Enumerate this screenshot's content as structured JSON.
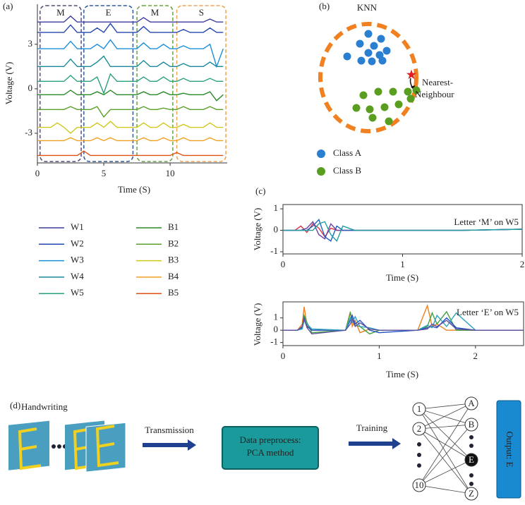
{
  "panel_labels": [
    "(a)",
    "(b)",
    "(c)",
    "(d)"
  ],
  "chart_data": [
    {
      "type": "line",
      "xlabel": "Time (S)",
      "ylabel": "Voltage (V)",
      "x": [
        0,
        0.5,
        1,
        1.5,
        2,
        2.5,
        3,
        3.5,
        4,
        4.5,
        5,
        5.5,
        6,
        6.5,
        7,
        7.5,
        8,
        8.5,
        9,
        9.5,
        10,
        10.5,
        11,
        11.5,
        12,
        12.5,
        13,
        13.5,
        14
      ],
      "xlim": [
        0,
        14.3
      ],
      "ylim": [
        -5,
        5.7
      ],
      "xticks": [
        0,
        5,
        10
      ],
      "yticks": [
        -3,
        0,
        3
      ],
      "regions": [
        {
          "label": "M",
          "x": [
            0.2,
            3.3
          ],
          "color": "#5a4a7a"
        },
        {
          "label": "E",
          "x": [
            3.5,
            7.2
          ],
          "color": "#2a5aa0"
        },
        {
          "label": "M",
          "x": [
            7.5,
            10.2
          ],
          "color": "#6aa040"
        },
        {
          "label": "S",
          "x": [
            10.5,
            14.2
          ],
          "color": "#f0a050"
        }
      ],
      "series": [
        {
          "name": "W1",
          "color": "#3b3b9e",
          "values": [
            4.5,
            4.5,
            4.5,
            4.5,
            4.5,
            4.9,
            4.5,
            4.5,
            4.5,
            4.5,
            4.5,
            4.5,
            4.5,
            4.5,
            4.5,
            4.5,
            4.8,
            4.5,
            4.5,
            4.5,
            4.5,
            4.5,
            4.5,
            4.5,
            4.5,
            4.5,
            4.7,
            4.5,
            4.5
          ]
        },
        {
          "name": "W2",
          "color": "#2346b0",
          "values": [
            3.8,
            3.8,
            3.8,
            3.8,
            3.8,
            4.3,
            3.8,
            3.8,
            3.8,
            4.1,
            3.8,
            4.4,
            3.8,
            3.8,
            3.8,
            3.8,
            4.2,
            3.8,
            3.8,
            3.8,
            3.8,
            3.8,
            4.0,
            3.8,
            3.8,
            3.8,
            4.1,
            3.8,
            3.8
          ]
        },
        {
          "name": "W3",
          "color": "#1a8fd8",
          "values": [
            2.7,
            2.7,
            2.7,
            2.7,
            2.7,
            3.2,
            2.7,
            2.7,
            2.7,
            3.0,
            2.7,
            3.3,
            2.7,
            2.7,
            2.7,
            2.7,
            3.1,
            2.7,
            2.7,
            3.0,
            2.7,
            2.7,
            2.9,
            2.7,
            2.7,
            2.7,
            3.0,
            1.5,
            2.7
          ]
        },
        {
          "name": "W4",
          "color": "#1a8a9a",
          "values": [
            1.5,
            1.5,
            1.5,
            1.5,
            1.5,
            2.0,
            1.5,
            1.5,
            1.5,
            1.8,
            2.2,
            1.5,
            1.5,
            1.5,
            1.5,
            1.5,
            1.9,
            1.5,
            1.5,
            1.8,
            1.5,
            1.5,
            1.7,
            1.5,
            1.5,
            1.5,
            1.8,
            1.5,
            1.5
          ]
        },
        {
          "name": "W5",
          "color": "#2aa080",
          "values": [
            0.5,
            0.5,
            0.5,
            0.5,
            0.5,
            0.9,
            0.5,
            0.5,
            0.5,
            0.8,
            -0.3,
            1.0,
            0.5,
            0.5,
            0.5,
            0.5,
            0.8,
            0.5,
            0.5,
            0.8,
            0.5,
            0.5,
            0.7,
            0.5,
            0.5,
            0.5,
            0.7,
            0.5,
            0.5
          ]
        },
        {
          "name": "B1",
          "color": "#2a8a2a",
          "values": [
            -0.4,
            -0.4,
            -0.4,
            -0.4,
            -0.4,
            -0.1,
            -0.4,
            -0.4,
            -0.4,
            -0.2,
            -0.4,
            -0.1,
            -0.4,
            -0.4,
            -0.4,
            -0.4,
            -0.2,
            -0.4,
            -0.4,
            -0.2,
            -0.4,
            -0.4,
            -0.3,
            -0.4,
            -0.4,
            -0.4,
            -0.2,
            -0.8,
            -0.4
          ]
        },
        {
          "name": "B2",
          "color": "#5aa02a",
          "values": [
            -1.4,
            -1.4,
            -1.4,
            -1.4,
            -1.4,
            -1.2,
            -1.4,
            -1.4,
            -1.4,
            -1.2,
            -1.9,
            -1.4,
            -1.4,
            -1.4,
            -1.4,
            -1.4,
            -1.2,
            -1.4,
            -1.4,
            -1.3,
            -1.4,
            -1.4,
            -1.2,
            -1.4,
            -1.4,
            -1.4,
            -1.2,
            -1.4,
            -1.4
          ]
        },
        {
          "name": "B3",
          "color": "#d0c81a",
          "values": [
            -2.6,
            -2.6,
            -2.6,
            -2.3,
            -2.6,
            -3.0,
            -2.6,
            -2.6,
            -2.6,
            -2.3,
            -2.6,
            -2.2,
            -2.6,
            -2.6,
            -2.6,
            -2.6,
            -2.3,
            -2.6,
            -2.6,
            -2.3,
            -2.6,
            -2.6,
            -2.4,
            -2.6,
            -2.6,
            -2.6,
            -2.3,
            -2.6,
            -2.6
          ]
        },
        {
          "name": "B4",
          "color": "#f0a020",
          "values": [
            -3.5,
            -3.5,
            -3.5,
            -3.5,
            -3.5,
            -3.3,
            -3.5,
            -3.5,
            -3.5,
            -3.3,
            -3.5,
            -3.3,
            -3.5,
            -3.5,
            -3.5,
            -3.5,
            -3.3,
            -3.5,
            -3.5,
            -3.3,
            -3.5,
            -3.5,
            -3.3,
            -3.5,
            -3.5,
            -3.5,
            -3.3,
            -3.5,
            -3.5
          ]
        },
        {
          "name": "B5",
          "color": "#e05010",
          "values": [
            -4.5,
            -4.5,
            -4.5,
            -4.5,
            -4.5,
            -4.5,
            -4.5,
            -4.2,
            -4.5,
            -4.5,
            -4.5,
            -4.5,
            -4.5,
            -4.5,
            -4.5,
            -4.5,
            -4.5,
            -4.5,
            -4.5,
            -4.5,
            -4.5,
            -4.3,
            -4.5,
            -4.5,
            -4.5,
            -4.5,
            -4.5,
            -4.5,
            -4.5
          ]
        }
      ]
    },
    {
      "type": "scatter",
      "title": "KNN",
      "xlim": [
        0,
        150
      ],
      "ylim": [
        0,
        170
      ],
      "annotation": [
        "Nearest-",
        "Neighbour"
      ],
      "highlight": {
        "x": 133,
        "y": 84,
        "color": "#e02020"
      },
      "series": [
        {
          "name": "Class A",
          "color": "#2a7fd0",
          "x": [
            72,
            90,
            60,
            80,
            98,
            72,
            88,
            42,
            62,
            77,
            92
          ],
          "y": [
            142,
            135,
            128,
            125,
            118,
            115,
            112,
            110,
            104,
            103,
            104
          ]
        },
        {
          "name": "Class B",
          "color": "#5a9e20",
          "x": [
            65,
            86,
            107,
            128,
            140,
            55,
            74,
            95,
            115,
            132,
            78,
            101
          ],
          "y": [
            55,
            60,
            60,
            60,
            62,
            37,
            35,
            38,
            42,
            50,
            23,
            18
          ]
        }
      ]
    },
    {
      "type": "line",
      "xlabel": "Time (S)",
      "ylabel": "Voltage (V)",
      "annotation": "Letter ‘M’ on W5",
      "x": [
        0,
        0.1,
        0.15,
        0.2,
        0.25,
        0.3,
        0.35,
        0.4,
        0.45,
        0.5,
        0.6,
        1,
        1.5,
        2
      ],
      "xlim": [
        0,
        2
      ],
      "ylim": [
        -1.1,
        1.2
      ],
      "xticks": [
        0,
        1,
        2
      ],
      "yticks": [
        -1,
        0,
        1
      ],
      "series": [
        {
          "color": "#e03040",
          "values": [
            0,
            0,
            0.2,
            -0.1,
            0.3,
            0.1,
            -0.3,
            0.1,
            0,
            0,
            0,
            0,
            0,
            0.05
          ]
        },
        {
          "color": "#7040a0",
          "values": [
            0,
            0,
            0,
            0.1,
            0.4,
            -0.2,
            -0.4,
            0.3,
            0,
            0,
            0,
            0,
            0,
            0.05
          ]
        },
        {
          "color": "#2060c0",
          "values": [
            0,
            0,
            0,
            0,
            0.2,
            0.5,
            -0.3,
            -0.5,
            0.2,
            0,
            0,
            0,
            0,
            0.05
          ]
        },
        {
          "color": "#20a0a0",
          "values": [
            0,
            0,
            0,
            0,
            0,
            0.3,
            0.4,
            -0.2,
            -0.5,
            0.2,
            0,
            0,
            0,
            0.05
          ]
        }
      ]
    },
    {
      "type": "line",
      "xlabel": "Time (S)",
      "ylabel": "Voltage (V)",
      "annotation": "Letter ‘E’ on W5",
      "x": [
        0,
        0.15,
        0.2,
        0.22,
        0.25,
        0.3,
        0.65,
        0.7,
        0.72,
        0.75,
        0.8,
        0.9,
        1.0,
        1.4,
        1.5,
        1.55,
        1.6,
        1.7,
        1.8,
        2,
        2.5
      ],
      "xlim": [
        0,
        2.5
      ],
      "ylim": [
        -1.25,
        2.3
      ],
      "xticks": [
        0,
        1,
        2
      ],
      "yticks": [
        -1,
        0,
        1
      ],
      "series": [
        {
          "color": "#f08020",
          "values": [
            0,
            0,
            0.5,
            1.9,
            0.4,
            0,
            0,
            1.5,
            0.3,
            0.8,
            -0.2,
            0.1,
            0,
            0,
            2.0,
            0.3,
            0.5,
            0,
            0,
            0,
            0
          ]
        },
        {
          "color": "#40a040",
          "values": [
            0,
            0,
            0.3,
            1.2,
            0.6,
            -0.2,
            0,
            1.4,
            0.9,
            0.4,
            0.3,
            -0.3,
            0,
            0,
            0.3,
            1.4,
            0.5,
            1.5,
            0,
            0,
            0
          ]
        },
        {
          "color": "#2050c0",
          "values": [
            0,
            0,
            0.2,
            1.0,
            0.3,
            0,
            0,
            0.8,
            1.2,
            0.5,
            0.8,
            0,
            -0.2,
            0,
            0.2,
            0.3,
            0.2,
            1.0,
            0.2,
            0,
            0
          ]
        },
        {
          "color": "#30a0c0",
          "values": [
            0,
            0,
            0.1,
            0.8,
            0.5,
            0.1,
            0,
            1.0,
            0.6,
            1.1,
            0.3,
            0.2,
            0,
            0,
            0.4,
            0.2,
            1.2,
            0.3,
            1.4,
            0,
            0
          ]
        },
        {
          "color": "#6050a0",
          "values": [
            0,
            0,
            0.3,
            0.9,
            0.2,
            -0.3,
            0,
            0.5,
            0.9,
            0.3,
            0.6,
            0.1,
            0,
            0,
            0.1,
            0.5,
            0.3,
            0.8,
            0.1,
            0,
            0
          ]
        }
      ]
    }
  ],
  "diagram": {
    "input_label": "Handwriting",
    "steps": [
      "Transmission",
      "Training"
    ],
    "process": [
      "Data preprocess:",
      "PCA method"
    ],
    "input_nodes": [
      "1",
      "2",
      "10"
    ],
    "output_nodes": [
      "A",
      "B",
      "E",
      "Z"
    ],
    "output": "Output: E"
  }
}
